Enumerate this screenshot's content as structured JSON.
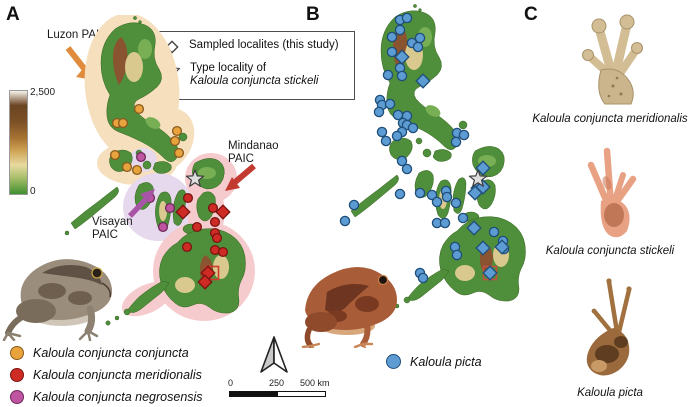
{
  "figure": {
    "panel_a_letter": "A",
    "panel_b_letter": "B",
    "panel_c_letter": "C"
  },
  "panel_a": {
    "region_labels": {
      "luzon": "Luzon PAIC",
      "visayan_line1": "Visayan",
      "visayan_line2": "PAIC",
      "mindanao_line1": "Mindanao",
      "mindanao_line2": "PAIC"
    },
    "elevation_scale": {
      "max": "2,500",
      "min": "0"
    },
    "legend_box": {
      "sampled_label": "Sampled localites (this study)",
      "type_locality_line1": "Type locality of",
      "type_locality_line2": "Kaloula conjuncta stickeli"
    },
    "species_legend": [
      {
        "label": "Kaloula conjuncta conjuncta",
        "color": "#E8A33D",
        "edge": "#8A5A1E"
      },
      {
        "label": "Kaloula conjuncta meridionalis",
        "color": "#CE2B25",
        "edge": "#7A1410"
      },
      {
        "label": "Kaloula conjuncta negrosensis",
        "color": "#BF55A1",
        "edge": "#6E2A5C"
      }
    ]
  },
  "panel_b": {
    "legend": {
      "label": "Kaloula picta",
      "color": "#5D9BD3",
      "edge": "#1F4E79"
    },
    "scale_bar": {
      "tick_0": "0",
      "tick_250": "250",
      "tick_500": "500 km"
    }
  },
  "panel_c": {
    "labels": [
      "Kaloula conjuncta meridionalis",
      "Kaloula conjuncta stickeli",
      "Kaloula picta"
    ]
  },
  "region_colors": {
    "luzon_halo": "#F5DFBD",
    "visayan_halo": "#E6D9ED",
    "mindanao_halo": "#F6CBCE"
  },
  "markers": {
    "a_orange": {
      "shape": "circle",
      "r": 4.4,
      "fill": "#E8A33D",
      "edge": "#8A5A1E",
      "points": [
        [
          84,
          94
        ],
        [
          62,
          108
        ],
        [
          68,
          108
        ],
        [
          122,
          116
        ],
        [
          120,
          126
        ],
        [
          124,
          138
        ],
        [
          60,
          140
        ],
        [
          72,
          152
        ],
        [
          82,
          155
        ]
      ]
    },
    "a_magenta": {
      "shape": "circle",
      "r": 4.4,
      "fill": "#BF55A1",
      "edge": "#6E2A5C",
      "points": [
        [
          86,
          142
        ],
        [
          95,
          183
        ],
        [
          115,
          193
        ],
        [
          108,
          212
        ]
      ]
    },
    "a_red_circles": {
      "shape": "circle",
      "r": 4.4,
      "fill": "#CE2B25",
      "edge": "#7A1410",
      "points": [
        [
          133,
          183
        ],
        [
          158,
          193
        ],
        [
          160,
          207
        ],
        [
          142,
          212
        ],
        [
          160,
          218
        ],
        [
          162,
          223
        ],
        [
          132,
          232
        ],
        [
          160,
          235
        ],
        [
          168,
          237
        ]
      ]
    },
    "a_square": {
      "shape": "square",
      "edge": "#D03A2E",
      "points": [
        [
          157,
          258
        ]
      ]
    },
    "a_red_diamonds": {
      "shape": "diamond",
      "fill": "#CE2B25",
      "edge": "#7A1410",
      "points": [
        [
          128,
          197
        ],
        [
          168,
          197
        ],
        [
          153,
          258
        ],
        [
          150,
          267
        ]
      ]
    },
    "a_star": {
      "shape": "star",
      "fill": "#DEDEDE",
      "edge": "#3C3C3C",
      "points": [
        [
          140,
          164
        ]
      ]
    },
    "b_blue_circles": {
      "shape": "circle",
      "r": 4.6,
      "fill": "#5D9BD3",
      "edge": "#1F4E79",
      "points": [
        [
          65,
          17
        ],
        [
          72,
          15
        ],
        [
          57,
          34
        ],
        [
          65,
          27
        ],
        [
          77,
          40
        ],
        [
          85,
          35
        ],
        [
          83,
          44
        ],
        [
          57,
          49
        ],
        [
          53,
          72
        ],
        [
          65,
          65
        ],
        [
          67,
          73
        ],
        [
          45,
          97
        ],
        [
          47,
          102
        ],
        [
          44,
          109
        ],
        [
          55,
          101
        ],
        [
          63,
          112
        ],
        [
          72,
          113
        ],
        [
          68,
          120
        ],
        [
          72,
          122
        ],
        [
          67,
          129
        ],
        [
          47,
          129
        ],
        [
          51,
          138
        ],
        [
          62,
          133
        ],
        [
          78,
          125
        ],
        [
          122,
          130
        ],
        [
          129,
          132
        ],
        [
          121,
          139
        ],
        [
          67,
          158
        ],
        [
          72,
          166
        ],
        [
          65,
          191
        ],
        [
          85,
          190
        ],
        [
          97,
          192
        ],
        [
          102,
          199
        ],
        [
          111,
          188
        ],
        [
          112,
          194
        ],
        [
          121,
          200
        ],
        [
          128,
          215
        ],
        [
          102,
          220
        ],
        [
          110,
          220
        ],
        [
          19,
          202
        ],
        [
          10,
          218
        ],
        [
          120,
          244
        ],
        [
          122,
          252
        ],
        [
          85,
          270
        ],
        [
          88,
          275
        ],
        [
          159,
          229
        ],
        [
          168,
          238
        ],
        [
          169,
          246
        ]
      ]
    },
    "b_square": {
      "shape": "square",
      "edge": "#C05040",
      "points": [
        [
          155,
          270
        ]
      ]
    },
    "b_blue_diamonds": {
      "shape": "diamond",
      "fill": "#5D9BD3",
      "edge": "#1F4E79",
      "points": [
        [
          67,
          54
        ],
        [
          88,
          78
        ],
        [
          148,
          165
        ],
        [
          143,
          185
        ],
        [
          148,
          184
        ],
        [
          140,
          190
        ],
        [
          139,
          225
        ],
        [
          148,
          245
        ],
        [
          167,
          244
        ],
        [
          155,
          270
        ]
      ]
    },
    "b_star": {
      "shape": "star",
      "fill": "#DEDEDE",
      "edge": "#3C3C3C",
      "points": [
        [
          143,
          176
        ]
      ]
    }
  }
}
